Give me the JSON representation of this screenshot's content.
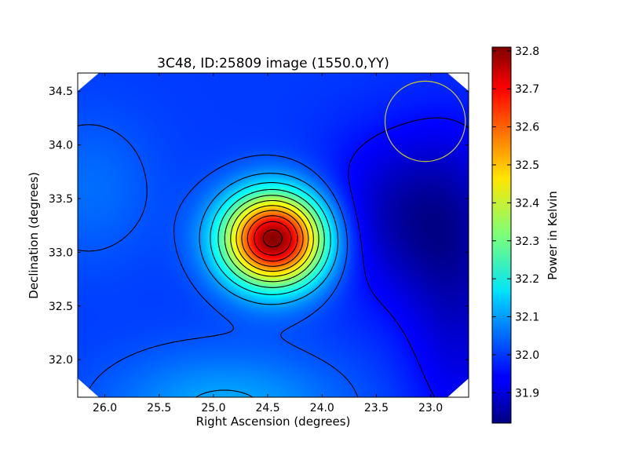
{
  "chart_data": {
    "type": "heatmap",
    "title": "3C48, ID:25809 image (1550.0,YY)",
    "xlabel": "Right Ascension (degrees)",
    "ylabel": "Declination (degrees)",
    "xlim": [
      26.25,
      22.65
    ],
    "ylim": [
      31.65,
      34.67
    ],
    "x_ticks": [
      26.0,
      25.5,
      25.0,
      24.5,
      24.0,
      23.5,
      23.0
    ],
    "x_tick_labels": [
      "26.0",
      "25.5",
      "25.0",
      "24.5",
      "24.0",
      "23.5",
      "23.0"
    ],
    "y_ticks": [
      32.0,
      32.5,
      33.0,
      33.5,
      34.0,
      34.5
    ],
    "y_tick_labels": [
      "32.0",
      "32.5",
      "33.0",
      "33.5",
      "34.0",
      "34.5"
    ],
    "colormap": "jet",
    "colorbar": {
      "label": "Power in Kelvin",
      "min": 31.82,
      "max": 32.81,
      "ticks": [
        31.9,
        32.0,
        32.1,
        32.2,
        32.3,
        32.4,
        32.5,
        32.6,
        32.7,
        32.8
      ],
      "tick_labels": [
        "31.9",
        "32.0",
        "32.1",
        "32.2",
        "32.3",
        "32.4",
        "32.5",
        "32.6",
        "32.7",
        "32.8"
      ]
    },
    "peak": {
      "ra": 24.45,
      "dec": 33.13,
      "value": 32.81
    },
    "background_level": 32.0,
    "contours": true,
    "beam_circle": {
      "ra": 23.05,
      "dec": 34.22,
      "radius_deg": 0.37,
      "color": "#c8c832"
    }
  }
}
